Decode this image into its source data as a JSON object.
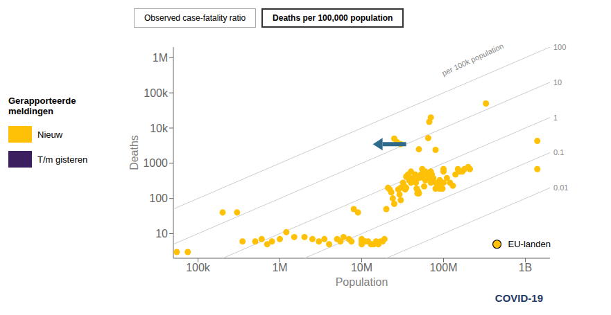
{
  "chart_data": {
    "type": "scatter",
    "title": "Deaths per 100,000 population",
    "subtitle": "Observed case-fatality ratio",
    "x_label": "Population",
    "y_label": "Deaths",
    "log": true,
    "grid": false,
    "legend": "left",
    "legend_title": "Gerapporteerde\nmeldingen",
    "xlim": [
      50000,
      2000000000
    ],
    "ylim": [
      2,
      2000000
    ],
    "xticks": [
      {
        "value": 100000,
        "label": "100k"
      },
      {
        "value": 1000000,
        "label": "1M"
      },
      {
        "value": 10000000,
        "label": "10M"
      },
      {
        "value": 100000000,
        "label": "100M"
      },
      {
        "value": 1000000000,
        "label": "1B"
      }
    ],
    "yticks": [
      10,
      100,
      1000,
      {
        "value": 10000,
        "label": "10k"
      },
      {
        "value": 100000,
        "label": "100k"
      },
      {
        "value": 1000000,
        "label": "1M"
      }
    ],
    "reference_lines": {
      "values": [
        100,
        10,
        1,
        0.1,
        0.01
      ],
      "color": "#CCCCCC",
      "label": "per 100k population"
    },
    "series": [
      {
        "name": "Nieuw",
        "color": "#FFC107",
        "x": [
          55000,
          75000,
          200000,
          300000,
          350000,
          500000,
          600000,
          700000,
          800000,
          1000000,
          1200000,
          1500000,
          2000000,
          2500000,
          3000000,
          3500000,
          4000000,
          5000000,
          5500000,
          6000000,
          7000000,
          7500000,
          8000000,
          9000000,
          10000000,
          10000000,
          10000000,
          11000000,
          12000000,
          13000000,
          14000000,
          15000000,
          16000000,
          17000000,
          18000000,
          19000000,
          20000000,
          21000000,
          22000000,
          23000000,
          24000000,
          25000000,
          25000000,
          27000000,
          28000000,
          29000000,
          30000000,
          30000000,
          30000000,
          32000000,
          33000000,
          34000000,
          35000000,
          35000000,
          37000000,
          38000000,
          40000000,
          40000000,
          42000000,
          44000000,
          45000000,
          46000000,
          47000000,
          48000000,
          49000000,
          50000000,
          50000000,
          50000000,
          53000000,
          55000000,
          57000000,
          58000000,
          60000000,
          60000000,
          63000000,
          65000000,
          65000000,
          67000000,
          67000000,
          70000000,
          70000000,
          70000000,
          72000000,
          75000000,
          80000000,
          80000000,
          80000000,
          83000000,
          85000000,
          90000000,
          90000000,
          95000000,
          97000000,
          100000000,
          100000000,
          100000000,
          110000000,
          120000000,
          130000000,
          140000000,
          150000000,
          160000000,
          170000000,
          180000000,
          200000000,
          210000000,
          330000000,
          1400000000,
          1400000000
        ],
        "values": [
          3,
          3,
          40,
          40,
          6,
          6,
          7,
          5,
          6,
          7,
          11,
          8,
          8,
          7,
          6,
          7,
          5,
          7,
          6,
          8,
          7,
          6,
          50,
          40,
          7,
          6,
          5,
          6,
          6,
          5,
          5,
          6,
          5,
          6,
          6,
          7,
          50,
          200,
          180,
          150,
          100,
          70,
          5000,
          4000,
          180,
          130,
          90,
          200,
          3500,
          280,
          230,
          180,
          200,
          420,
          480,
          330,
          280,
          580,
          380,
          320,
          480,
          280,
          190,
          140,
          160,
          140,
          380,
          2500,
          480,
          680,
          380,
          220,
          330,
          580,
          480,
          380,
          5200,
          380,
          15000,
          280,
          580,
          20000,
          480,
          380,
          190,
          280,
          2400,
          280,
          230,
          190,
          330,
          280,
          190,
          280,
          580,
          680,
          380,
          280,
          230,
          480,
          680,
          580,
          580,
          680,
          780,
          680,
          50000,
          4300,
          680
        ]
      },
      {
        "name": "T/m gisteren",
        "color": "#3B1F5E",
        "x": [],
        "values": []
      }
    ],
    "annotations": [
      {
        "text": "EU-landen",
        "x": 450000000,
        "y": 5,
        "color": "#FFC107",
        "marker": "circle"
      },
      {
        "x": [
          35000000,
          18000000
        ],
        "y": 3500,
        "color": "#2E6B8A",
        "marker": "arrow"
      },
      {
        "text": "COVID-19",
        "color": "#1F3864"
      }
    ]
  }
}
